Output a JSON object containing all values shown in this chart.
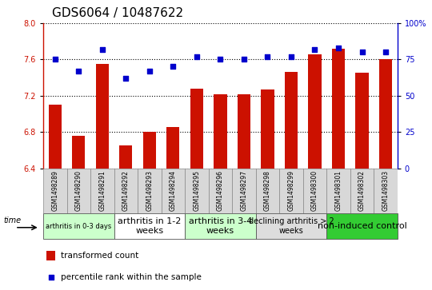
{
  "title": "GDS6064 / 10487622",
  "samples": [
    "GSM1498289",
    "GSM1498290",
    "GSM1498291",
    "GSM1498292",
    "GSM1498293",
    "GSM1498294",
    "GSM1498295",
    "GSM1498296",
    "GSM1498297",
    "GSM1498298",
    "GSM1498299",
    "GSM1498300",
    "GSM1498301",
    "GSM1498302",
    "GSM1498303"
  ],
  "bar_values": [
    7.1,
    6.76,
    7.55,
    6.65,
    6.8,
    6.85,
    7.28,
    7.22,
    7.22,
    7.27,
    7.46,
    7.66,
    7.72,
    7.45,
    7.6
  ],
  "dot_values": [
    75,
    67,
    82,
    62,
    67,
    70,
    77,
    75,
    75,
    77,
    77,
    82,
    83,
    80,
    80
  ],
  "ylim_left": [
    6.4,
    8.0
  ],
  "ylim_right": [
    0,
    100
  ],
  "yticks_left": [
    6.4,
    6.8,
    7.2,
    7.6,
    8.0
  ],
  "yticks_right": [
    0,
    25,
    50,
    75,
    100
  ],
  "bar_color": "#cc1100",
  "dot_color": "#0000cc",
  "grid_color": "#000000",
  "groups": [
    {
      "label": "arthritis in 0-3 days",
      "start": 0,
      "end": 3,
      "color": "#ccffcc",
      "fontsize": 6
    },
    {
      "label": "arthritis in 1-2\nweeks",
      "start": 3,
      "end": 6,
      "color": "#ffffff",
      "fontsize": 8
    },
    {
      "label": "arthritis in 3-4\nweeks",
      "start": 6,
      "end": 9,
      "color": "#ccffcc",
      "fontsize": 8
    },
    {
      "label": "declining arthritis > 2\nweeks",
      "start": 9,
      "end": 12,
      "color": "#dddddd",
      "fontsize": 7
    },
    {
      "label": "non-induced control",
      "start": 12,
      "end": 15,
      "color": "#33cc33",
      "fontsize": 8
    }
  ],
  "legend_bar_label": "transformed count",
  "legend_dot_label": "percentile rank within the sample",
  "time_label": "time",
  "title_fontsize": 11,
  "tick_fontsize": 6,
  "label_fontsize": 8
}
